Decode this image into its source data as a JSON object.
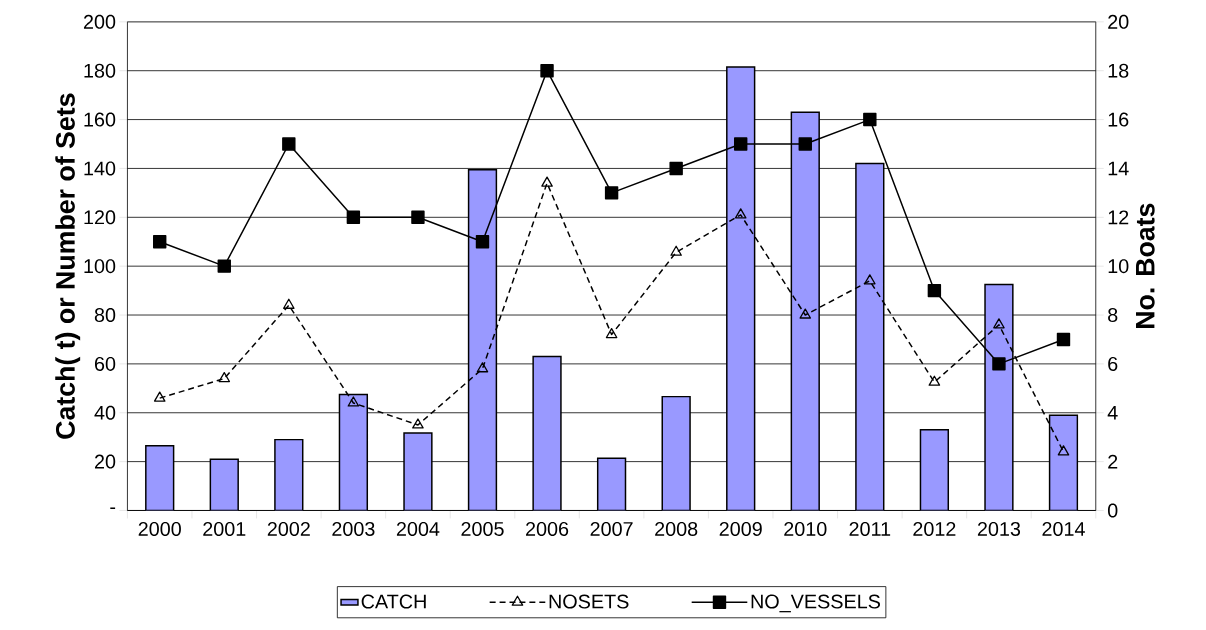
{
  "chart_data": {
    "type": "bar",
    "categories": [
      "2000",
      "2001",
      "2002",
      "2003",
      "2004",
      "2005",
      "2006",
      "2007",
      "2008",
      "2009",
      "2010",
      "2011",
      "2012",
      "2013",
      "2014"
    ],
    "ylabel": "Catch( t) or Number of Sets",
    "y2label": "No. Boats",
    "ylim": [
      0,
      200
    ],
    "yticks": [
      {
        "value": 0,
        "label": "-"
      },
      20,
      40,
      60,
      80,
      100,
      120,
      140,
      160,
      180,
      200
    ],
    "y2lim": [
      0,
      20
    ],
    "y2ticks": [
      0,
      2,
      4,
      6,
      8,
      10,
      12,
      14,
      16,
      18,
      20
    ],
    "grid": "y",
    "legend": "bottom",
    "series": [
      {
        "name": "CATCH",
        "color": "#9999ff",
        "values": [
          26.5,
          21,
          29,
          47.5,
          31.7,
          139.5,
          63,
          21.4,
          46.6,
          181.5,
          163,
          142,
          33,
          92.5,
          39
        ]
      },
      {
        "name": "NOSETS",
        "type": "line",
        "color": "#000000",
        "marker": "triangle",
        "line_style": "dashed",
        "values": [
          46,
          54,
          84,
          44,
          35,
          58,
          134,
          72,
          105.7,
          121,
          80,
          94,
          52.5,
          76,
          24
        ]
      },
      {
        "name": "NO_VESSELS",
        "type": "line",
        "color": "#000000",
        "marker": "square",
        "line_style": "solid",
        "axis": "y2",
        "values": [
          11,
          10,
          15,
          12,
          12,
          11,
          18,
          13,
          14,
          15,
          15,
          16,
          9,
          6,
          7
        ]
      }
    ]
  }
}
